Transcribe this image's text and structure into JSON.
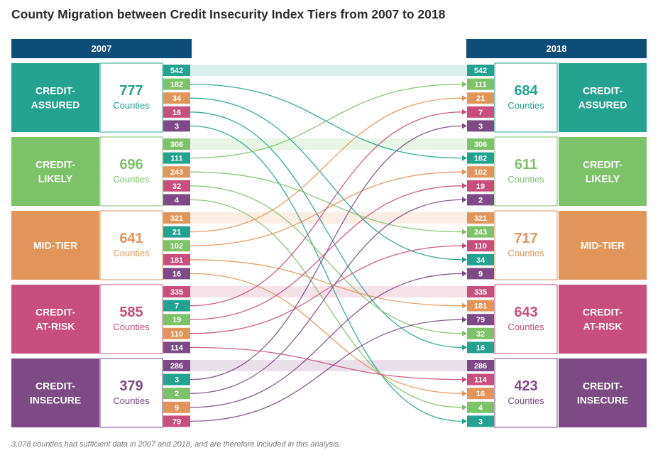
{
  "title": "County Migration between Credit Insecurity Index Tiers from 2007 to 2018",
  "year_left": "2007",
  "year_right": "2018",
  "counties_label": "Counties",
  "footnote": "3,078 counties had sufficient data in 2007 and 2018, and are therefore included in this analysis.",
  "colors": {
    "header": "#0f4d79",
    "credit-assured": "#23a28f",
    "credit-likely": "#7cc269",
    "mid-tier": "#e1955a",
    "credit-at-risk": "#c84f7d",
    "credit-insecure": "#7e4a85"
  },
  "tiers": [
    {
      "key": "credit-assured",
      "label_lines": [
        "CREDIT-",
        "ASSURED"
      ],
      "count_2007": "777",
      "count_2018": "684"
    },
    {
      "key": "credit-likely",
      "label_lines": [
        "CREDIT-",
        "LIKELY"
      ],
      "count_2007": "696",
      "count_2018": "611"
    },
    {
      "key": "mid-tier",
      "label_lines": [
        "MID-TIER"
      ],
      "count_2007": "641",
      "count_2018": "717"
    },
    {
      "key": "credit-at-risk",
      "label_lines": [
        "CREDIT-",
        "AT-RISK"
      ],
      "count_2007": "585",
      "count_2018": "643"
    },
    {
      "key": "credit-insecure",
      "label_lines": [
        "CREDIT-",
        "INSECURE"
      ],
      "count_2007": "379",
      "count_2018": "423"
    }
  ],
  "left_chips": [
    [
      {
        "v": "542",
        "to": 0
      },
      {
        "v": "182",
        "to": 1
      },
      {
        "v": "34",
        "to": 2
      },
      {
        "v": "16",
        "to": 3
      },
      {
        "v": "3",
        "to": 4
      }
    ],
    [
      {
        "v": "306",
        "to": 1
      },
      {
        "v": "111",
        "to": 0
      },
      {
        "v": "243",
        "to": 2
      },
      {
        "v": "32",
        "to": 3
      },
      {
        "v": "4",
        "to": 4
      }
    ],
    [
      {
        "v": "321",
        "to": 2
      },
      {
        "v": "21",
        "to": 0
      },
      {
        "v": "102",
        "to": 1
      },
      {
        "v": "181",
        "to": 3
      },
      {
        "v": "16",
        "to": 4
      }
    ],
    [
      {
        "v": "335",
        "to": 3
      },
      {
        "v": "7",
        "to": 0
      },
      {
        "v": "19",
        "to": 1
      },
      {
        "v": "110",
        "to": 2
      },
      {
        "v": "114",
        "to": 4
      }
    ],
    [
      {
        "v": "286",
        "to": 4
      },
      {
        "v": "3",
        "to": 0
      },
      {
        "v": "2",
        "to": 1
      },
      {
        "v": "9",
        "to": 2
      },
      {
        "v": "79",
        "to": 3
      }
    ]
  ],
  "right_chips": [
    [
      {
        "v": "542",
        "from": 0
      },
      {
        "v": "111",
        "from": 1
      },
      {
        "v": "21",
        "from": 2
      },
      {
        "v": "7",
        "from": 3
      },
      {
        "v": "3",
        "from": 4
      }
    ],
    [
      {
        "v": "306",
        "from": 1
      },
      {
        "v": "182",
        "from": 0
      },
      {
        "v": "102",
        "from": 2
      },
      {
        "v": "19",
        "from": 3
      },
      {
        "v": "2",
        "from": 4
      }
    ],
    [
      {
        "v": "321",
        "from": 2
      },
      {
        "v": "243",
        "from": 1
      },
      {
        "v": "110",
        "from": 3
      },
      {
        "v": "34",
        "from": 0
      },
      {
        "v": "9",
        "from": 4
      }
    ],
    [
      {
        "v": "335",
        "from": 3
      },
      {
        "v": "181",
        "from": 2
      },
      {
        "v": "79",
        "from": 4
      },
      {
        "v": "32",
        "from": 1
      },
      {
        "v": "16",
        "from": 0
      }
    ],
    [
      {
        "v": "286",
        "from": 4
      },
      {
        "v": "114",
        "from": 3
      },
      {
        "v": "16",
        "from": 2
      },
      {
        "v": "4",
        "from": 1
      },
      {
        "v": "3",
        "from": 0
      }
    ]
  ]
}
